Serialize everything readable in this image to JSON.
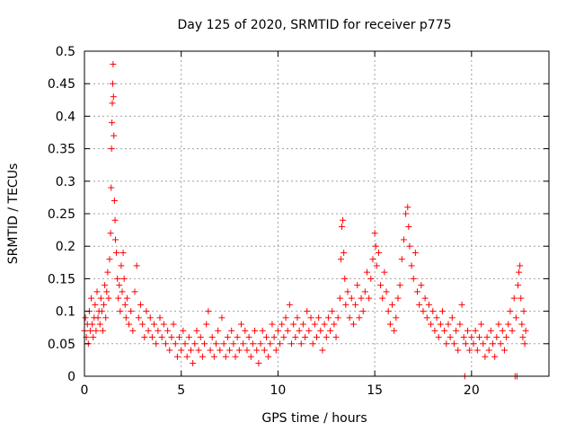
{
  "chart_data": {
    "type": "scatter",
    "title": "Day 125 of 2020, SRMTID for receiver p775",
    "xlabel": "GPS time / hours",
    "ylabel": "SRMTID / TECUs",
    "xlim": [
      0,
      24
    ],
    "ylim": [
      0,
      0.5
    ],
    "xticks": [
      0,
      5,
      10,
      15,
      20
    ],
    "xtick_labels": [
      "0",
      "5",
      "10",
      "15",
      "20"
    ],
    "yticks": [
      0,
      0.05,
      0.1,
      0.15,
      0.2,
      0.25,
      0.3,
      0.35,
      0.4,
      0.45,
      0.5
    ],
    "ytick_labels": [
      "0",
      "0.05",
      "0.1",
      "0.15",
      "0.2",
      "0.25",
      "0.3",
      "0.35",
      "0.4",
      "0.45",
      "0.5"
    ],
    "grid": true,
    "marker": "+",
    "color": "#ff0000",
    "series": [
      {
        "name": "SRMTID",
        "points": [
          [
            0.0,
            0.07
          ],
          [
            0.05,
            0.09
          ],
          [
            0.1,
            0.06
          ],
          [
            0.15,
            0.08
          ],
          [
            0.2,
            0.05
          ],
          [
            0.25,
            0.1
          ],
          [
            0.3,
            0.07
          ],
          [
            0.35,
            0.12
          ],
          [
            0.4,
            0.08
          ],
          [
            0.45,
            0.06
          ],
          [
            0.5,
            0.09
          ],
          [
            0.55,
            0.11
          ],
          [
            0.6,
            0.07
          ],
          [
            0.65,
            0.13
          ],
          [
            0.7,
            0.09
          ],
          [
            0.75,
            0.1
          ],
          [
            0.8,
            0.08
          ],
          [
            0.85,
            0.12
          ],
          [
            0.9,
            0.1
          ],
          [
            0.95,
            0.07
          ],
          [
            1.0,
            0.11
          ],
          [
            1.05,
            0.14
          ],
          [
            1.1,
            0.09
          ],
          [
            1.15,
            0.13
          ],
          [
            1.2,
            0.16
          ],
          [
            1.25,
            0.12
          ],
          [
            1.3,
            0.18
          ],
          [
            1.35,
            0.22
          ],
          [
            1.38,
            0.29
          ],
          [
            1.4,
            0.35
          ],
          [
            1.42,
            0.39
          ],
          [
            1.44,
            0.42
          ],
          [
            1.46,
            0.45
          ],
          [
            1.48,
            0.48
          ],
          [
            1.5,
            0.43
          ],
          [
            1.52,
            0.37
          ],
          [
            1.55,
            0.27
          ],
          [
            1.58,
            0.24
          ],
          [
            1.6,
            0.21
          ],
          [
            1.65,
            0.19
          ],
          [
            1.7,
            0.15
          ],
          [
            1.75,
            0.12
          ],
          [
            1.8,
            0.14
          ],
          [
            1.85,
            0.1
          ],
          [
            1.9,
            0.17
          ],
          [
            1.95,
            0.13
          ],
          [
            2.0,
            0.19
          ],
          [
            2.05,
            0.15
          ],
          [
            2.1,
            0.11
          ],
          [
            2.15,
            0.09
          ],
          [
            2.2,
            0.12
          ],
          [
            2.3,
            0.08
          ],
          [
            2.4,
            0.1
          ],
          [
            2.5,
            0.07
          ],
          [
            2.6,
            0.13
          ],
          [
            2.7,
            0.17
          ],
          [
            2.8,
            0.09
          ],
          [
            2.9,
            0.11
          ],
          [
            3.0,
            0.08
          ],
          [
            3.1,
            0.06
          ],
          [
            3.2,
            0.1
          ],
          [
            3.3,
            0.07
          ],
          [
            3.4,
            0.09
          ],
          [
            3.5,
            0.06
          ],
          [
            3.6,
            0.08
          ],
          [
            3.7,
            0.05
          ],
          [
            3.8,
            0.07
          ],
          [
            3.9,
            0.09
          ],
          [
            4.0,
            0.06
          ],
          [
            4.1,
            0.08
          ],
          [
            4.2,
            0.05
          ],
          [
            4.3,
            0.07
          ],
          [
            4.4,
            0.04
          ],
          [
            4.5,
            0.06
          ],
          [
            4.6,
            0.08
          ],
          [
            4.7,
            0.05
          ],
          [
            4.8,
            0.03
          ],
          [
            4.9,
            0.06
          ],
          [
            5.0,
            0.04
          ],
          [
            5.1,
            0.07
          ],
          [
            5.2,
            0.05
          ],
          [
            5.3,
            0.03
          ],
          [
            5.4,
            0.06
          ],
          [
            5.5,
            0.04
          ],
          [
            5.6,
            0.02
          ],
          [
            5.7,
            0.05
          ],
          [
            5.8,
            0.07
          ],
          [
            5.9,
            0.04
          ],
          [
            6.0,
            0.06
          ],
          [
            6.1,
            0.03
          ],
          [
            6.2,
            0.05
          ],
          [
            6.3,
            0.08
          ],
          [
            6.4,
            0.1
          ],
          [
            6.5,
            0.04
          ],
          [
            6.6,
            0.06
          ],
          [
            6.7,
            0.03
          ],
          [
            6.8,
            0.05
          ],
          [
            6.9,
            0.07
          ],
          [
            7.0,
            0.04
          ],
          [
            7.1,
            0.09
          ],
          [
            7.2,
            0.05
          ],
          [
            7.3,
            0.03
          ],
          [
            7.4,
            0.06
          ],
          [
            7.5,
            0.04
          ],
          [
            7.6,
            0.07
          ],
          [
            7.7,
            0.05
          ],
          [
            7.8,
            0.03
          ],
          [
            7.9,
            0.06
          ],
          [
            8.0,
            0.04
          ],
          [
            8.1,
            0.08
          ],
          [
            8.2,
            0.05
          ],
          [
            8.3,
            0.07
          ],
          [
            8.4,
            0.04
          ],
          [
            8.5,
            0.06
          ],
          [
            8.6,
            0.03
          ],
          [
            8.7,
            0.05
          ],
          [
            8.8,
            0.07
          ],
          [
            8.9,
            0.04
          ],
          [
            9.0,
            0.02
          ],
          [
            9.1,
            0.05
          ],
          [
            9.2,
            0.07
          ],
          [
            9.3,
            0.04
          ],
          [
            9.4,
            0.06
          ],
          [
            9.5,
            0.03
          ],
          [
            9.6,
            0.05
          ],
          [
            9.7,
            0.08
          ],
          [
            9.8,
            0.06
          ],
          [
            9.9,
            0.04
          ],
          [
            10.0,
            0.07
          ],
          [
            10.1,
            0.05
          ],
          [
            10.2,
            0.08
          ],
          [
            10.3,
            0.06
          ],
          [
            10.4,
            0.09
          ],
          [
            10.5,
            0.07
          ],
          [
            10.6,
            0.11
          ],
          [
            10.7,
            0.05
          ],
          [
            10.8,
            0.08
          ],
          [
            10.9,
            0.06
          ],
          [
            11.0,
            0.09
          ],
          [
            11.1,
            0.07
          ],
          [
            11.2,
            0.05
          ],
          [
            11.3,
            0.08
          ],
          [
            11.4,
            0.06
          ],
          [
            11.5,
            0.1
          ],
          [
            11.6,
            0.07
          ],
          [
            11.7,
            0.09
          ],
          [
            11.8,
            0.05
          ],
          [
            11.9,
            0.08
          ],
          [
            12.0,
            0.06
          ],
          [
            12.1,
            0.09
          ],
          [
            12.2,
            0.07
          ],
          [
            12.3,
            0.04
          ],
          [
            12.4,
            0.08
          ],
          [
            12.5,
            0.06
          ],
          [
            12.6,
            0.09
          ],
          [
            12.7,
            0.07
          ],
          [
            12.8,
            0.1
          ],
          [
            12.9,
            0.08
          ],
          [
            13.0,
            0.06
          ],
          [
            13.1,
            0.09
          ],
          [
            13.2,
            0.12
          ],
          [
            13.25,
            0.18
          ],
          [
            13.3,
            0.23
          ],
          [
            13.35,
            0.24
          ],
          [
            13.4,
            0.19
          ],
          [
            13.45,
            0.15
          ],
          [
            13.5,
            0.11
          ],
          [
            13.6,
            0.13
          ],
          [
            13.7,
            0.09
          ],
          [
            13.8,
            0.12
          ],
          [
            13.9,
            0.08
          ],
          [
            14.0,
            0.11
          ],
          [
            14.1,
            0.14
          ],
          [
            14.2,
            0.09
          ],
          [
            14.3,
            0.12
          ],
          [
            14.4,
            0.1
          ],
          [
            14.5,
            0.13
          ],
          [
            14.6,
            0.16
          ],
          [
            14.7,
            0.12
          ],
          [
            14.8,
            0.15
          ],
          [
            14.9,
            0.18
          ],
          [
            15.0,
            0.22
          ],
          [
            15.05,
            0.2
          ],
          [
            15.1,
            0.17
          ],
          [
            15.2,
            0.19
          ],
          [
            15.3,
            0.14
          ],
          [
            15.4,
            0.12
          ],
          [
            15.5,
            0.16
          ],
          [
            15.6,
            0.13
          ],
          [
            15.7,
            0.1
          ],
          [
            15.8,
            0.08
          ],
          [
            15.9,
            0.11
          ],
          [
            16.0,
            0.07
          ],
          [
            16.1,
            0.09
          ],
          [
            16.2,
            0.12
          ],
          [
            16.3,
            0.14
          ],
          [
            16.4,
            0.18
          ],
          [
            16.5,
            0.21
          ],
          [
            16.6,
            0.25
          ],
          [
            16.7,
            0.26
          ],
          [
            16.75,
            0.23
          ],
          [
            16.8,
            0.2
          ],
          [
            16.9,
            0.17
          ],
          [
            17.0,
            0.15
          ],
          [
            17.1,
            0.19
          ],
          [
            17.2,
            0.13
          ],
          [
            17.3,
            0.11
          ],
          [
            17.4,
            0.14
          ],
          [
            17.5,
            0.1
          ],
          [
            17.6,
            0.12
          ],
          [
            17.7,
            0.09
          ],
          [
            17.8,
            0.11
          ],
          [
            17.9,
            0.08
          ],
          [
            18.0,
            0.1
          ],
          [
            18.1,
            0.07
          ],
          [
            18.2,
            0.09
          ],
          [
            18.3,
            0.06
          ],
          [
            18.4,
            0.08
          ],
          [
            18.5,
            0.1
          ],
          [
            18.6,
            0.07
          ],
          [
            18.7,
            0.05
          ],
          [
            18.8,
            0.08
          ],
          [
            18.9,
            0.06
          ],
          [
            19.0,
            0.09
          ],
          [
            19.1,
            0.05
          ],
          [
            19.2,
            0.07
          ],
          [
            19.3,
            0.04
          ],
          [
            19.4,
            0.08
          ],
          [
            19.5,
            0.11
          ],
          [
            19.6,
            0.06
          ],
          [
            19.65,
            0.0
          ],
          [
            19.7,
            0.05
          ],
          [
            19.8,
            0.07
          ],
          [
            19.9,
            0.04
          ],
          [
            20.0,
            0.06
          ],
          [
            20.1,
            0.05
          ],
          [
            20.2,
            0.07
          ],
          [
            20.3,
            0.04
          ],
          [
            20.4,
            0.06
          ],
          [
            20.5,
            0.08
          ],
          [
            20.6,
            0.05
          ],
          [
            20.7,
            0.03
          ],
          [
            20.8,
            0.06
          ],
          [
            20.9,
            0.04
          ],
          [
            21.0,
            0.07
          ],
          [
            21.1,
            0.05
          ],
          [
            21.2,
            0.03
          ],
          [
            21.3,
            0.06
          ],
          [
            21.4,
            0.08
          ],
          [
            21.5,
            0.05
          ],
          [
            21.6,
            0.07
          ],
          [
            21.7,
            0.04
          ],
          [
            21.8,
            0.06
          ],
          [
            21.9,
            0.08
          ],
          [
            22.0,
            0.1
          ],
          [
            22.1,
            0.07
          ],
          [
            22.2,
            0.12
          ],
          [
            22.25,
            0.0
          ],
          [
            22.3,
            0.09
          ],
          [
            22.35,
            0.0
          ],
          [
            22.4,
            0.14
          ],
          [
            22.45,
            0.16
          ],
          [
            22.5,
            0.17
          ],
          [
            22.55,
            0.12
          ],
          [
            22.6,
            0.08
          ],
          [
            22.65,
            0.06
          ],
          [
            22.7,
            0.1
          ],
          [
            22.75,
            0.05
          ],
          [
            22.8,
            0.07
          ]
        ]
      }
    ]
  }
}
